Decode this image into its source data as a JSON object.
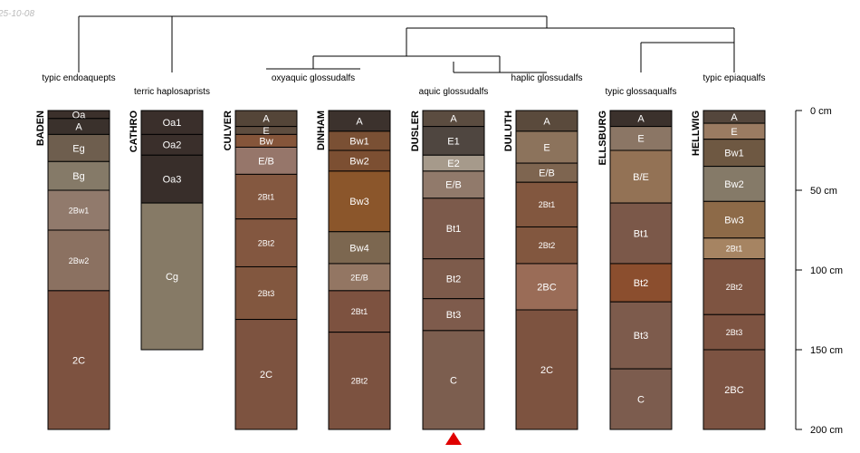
{
  "date_stamp": "25-10-08",
  "depth_axis": {
    "max_cm": 200,
    "ticks": [
      {
        "value": 0,
        "label": "0 cm"
      },
      {
        "value": 50,
        "label": "50 cm"
      },
      {
        "value": 100,
        "label": "100 cm"
      },
      {
        "value": 150,
        "label": "150 cm"
      },
      {
        "value": 200,
        "label": "200 cm"
      }
    ]
  },
  "taxa": [
    {
      "id": "endoaquepts",
      "label": "typic endoaquepts"
    },
    {
      "id": "haplosaprists",
      "label": "terric haplosaprists"
    },
    {
      "id": "oxyaquic",
      "label": "oxyaquic glossudalfs"
    },
    {
      "id": "aquic",
      "label": "aquic glossudalfs"
    },
    {
      "id": "haplic",
      "label": "haplic glossudalfs"
    },
    {
      "id": "glossaqualfs",
      "label": "typic glossaqualfs"
    },
    {
      "id": "epiaqualfs",
      "label": "typic epiaqualfs"
    }
  ],
  "marker": {
    "profile": "DUSLER",
    "color": "#e00000"
  },
  "profiles": [
    {
      "name": "BADEN",
      "horizons": [
        {
          "name": "Oa",
          "top": 0,
          "bottom": 5,
          "color": "#3b302b"
        },
        {
          "name": "A",
          "top": 5,
          "bottom": 15,
          "color": "#3a312c"
        },
        {
          "name": "Eg",
          "top": 15,
          "bottom": 32,
          "color": "#6e5e4e"
        },
        {
          "name": "Bg",
          "top": 32,
          "bottom": 50,
          "color": "#857a68"
        },
        {
          "name": "2Bw1",
          "top": 50,
          "bottom": 75,
          "color": "#917a6c"
        },
        {
          "name": "2Bw2",
          "top": 75,
          "bottom": 113,
          "color": "#8b7161"
        },
        {
          "name": "2C",
          "top": 113,
          "bottom": 200,
          "color": "#7d5240"
        }
      ]
    },
    {
      "name": "CATHRO",
      "horizons": [
        {
          "name": "Oa1",
          "top": 0,
          "bottom": 15,
          "color": "#3a2f2b"
        },
        {
          "name": "Oa2",
          "top": 15,
          "bottom": 28,
          "color": "#3a2f2b"
        },
        {
          "name": "Oa3",
          "top": 28,
          "bottom": 58,
          "color": "#382e2a"
        },
        {
          "name": "Cg",
          "top": 58,
          "bottom": 150,
          "color": "#867a66"
        }
      ]
    },
    {
      "name": "CULVER",
      "horizons": [
        {
          "name": "A",
          "top": 0,
          "bottom": 10,
          "color": "#544538"
        },
        {
          "name": "E",
          "top": 10,
          "bottom": 15,
          "color": "#5e4d3f"
        },
        {
          "name": "Bw",
          "top": 15,
          "bottom": 23,
          "color": "#85553a"
        },
        {
          "name": "E/B",
          "top": 23,
          "bottom": 40,
          "color": "#96766a"
        },
        {
          "name": "2Bt1",
          "top": 40,
          "bottom": 68,
          "color": "#845840"
        },
        {
          "name": "2Bt2",
          "top": 68,
          "bottom": 98,
          "color": "#835740"
        },
        {
          "name": "2Bt3",
          "top": 98,
          "bottom": 131,
          "color": "#82573f"
        },
        {
          "name": "2C",
          "top": 131,
          "bottom": 200,
          "color": "#7d5340"
        }
      ]
    },
    {
      "name": "DINHAM",
      "horizons": [
        {
          "name": "A",
          "top": 0,
          "bottom": 13,
          "color": "#3c322d"
        },
        {
          "name": "Bw1",
          "top": 13,
          "bottom": 25,
          "color": "#7a5034"
        },
        {
          "name": "Bw2",
          "top": 25,
          "bottom": 38,
          "color": "#7c4f32"
        },
        {
          "name": "Bw3",
          "top": 38,
          "bottom": 76,
          "color": "#8b562b"
        },
        {
          "name": "Bw4",
          "top": 76,
          "bottom": 96,
          "color": "#7c6750"
        },
        {
          "name": "2E/B",
          "top": 96,
          "bottom": 113,
          "color": "#937663"
        },
        {
          "name": "2Bt1",
          "top": 113,
          "bottom": 139,
          "color": "#7d5240"
        },
        {
          "name": "2Bt2",
          "top": 139,
          "bottom": 200,
          "color": "#7c5240"
        }
      ]
    },
    {
      "name": "DUSLER",
      "horizons": [
        {
          "name": "A",
          "top": 0,
          "bottom": 10,
          "color": "#5b4c40"
        },
        {
          "name": "E1",
          "top": 10,
          "bottom": 28,
          "color": "#4f4640"
        },
        {
          "name": "E2",
          "top": 28,
          "bottom": 38,
          "color": "#a69a8b"
        },
        {
          "name": "E/B",
          "top": 38,
          "bottom": 55,
          "color": "#917a6b"
        },
        {
          "name": "Bt1",
          "top": 55,
          "bottom": 93,
          "color": "#7c5a4b"
        },
        {
          "name": "Bt2",
          "top": 93,
          "bottom": 118,
          "color": "#7d5b4b"
        },
        {
          "name": "Bt3",
          "top": 118,
          "bottom": 138,
          "color": "#7e5b4c"
        },
        {
          "name": "C",
          "top": 138,
          "bottom": 200,
          "color": "#7c5e4f"
        }
      ]
    },
    {
      "name": "DULUTH",
      "horizons": [
        {
          "name": "A",
          "top": 0,
          "bottom": 13,
          "color": "#5a4a3c"
        },
        {
          "name": "E",
          "top": 13,
          "bottom": 33,
          "color": "#8c735c"
        },
        {
          "name": "E/B",
          "top": 33,
          "bottom": 45,
          "color": "#7e6550"
        },
        {
          "name": "2Bt1",
          "top": 45,
          "bottom": 73,
          "color": "#82573f"
        },
        {
          "name": "2Bt2",
          "top": 73,
          "bottom": 96,
          "color": "#82573f"
        },
        {
          "name": "2BC",
          "top": 96,
          "bottom": 125,
          "color": "#9a6c57"
        },
        {
          "name": "2C",
          "top": 125,
          "bottom": 200,
          "color": "#7d5340"
        }
      ]
    },
    {
      "name": "ELLSBURG",
      "horizons": [
        {
          "name": "A",
          "top": 0,
          "bottom": 10,
          "color": "#3b312c"
        },
        {
          "name": "E",
          "top": 10,
          "bottom": 25,
          "color": "#8b7665"
        },
        {
          "name": "B/E",
          "top": 25,
          "bottom": 58,
          "color": "#937255"
        },
        {
          "name": "Bt1",
          "top": 58,
          "bottom": 96,
          "color": "#7b5849"
        },
        {
          "name": "Bt2",
          "top": 96,
          "bottom": 120,
          "color": "#8b4e2e"
        },
        {
          "name": "Bt3",
          "top": 120,
          "bottom": 162,
          "color": "#7d5b4c"
        },
        {
          "name": "C",
          "top": 162,
          "bottom": 200,
          "color": "#7c5c4e"
        }
      ]
    },
    {
      "name": "HELLWIG",
      "horizons": [
        {
          "name": "A",
          "top": 0,
          "bottom": 8,
          "color": "#54463c"
        },
        {
          "name": "E",
          "top": 8,
          "bottom": 18,
          "color": "#9a7b62"
        },
        {
          "name": "Bw1",
          "top": 18,
          "bottom": 35,
          "color": "#6e5842"
        },
        {
          "name": "Bw2",
          "top": 35,
          "bottom": 57,
          "color": "#857a68"
        },
        {
          "name": "Bw3",
          "top": 57,
          "bottom": 80,
          "color": "#8d6a48"
        },
        {
          "name": "2Bt1",
          "top": 80,
          "bottom": 93,
          "color": "#a68462"
        },
        {
          "name": "2Bt2",
          "top": 93,
          "bottom": 128,
          "color": "#7e5441"
        },
        {
          "name": "2Bt3",
          "top": 128,
          "bottom": 150,
          "color": "#7d5341"
        },
        {
          "name": "2BC",
          "top": 150,
          "bottom": 200,
          "color": "#7c5342"
        }
      ]
    }
  ]
}
